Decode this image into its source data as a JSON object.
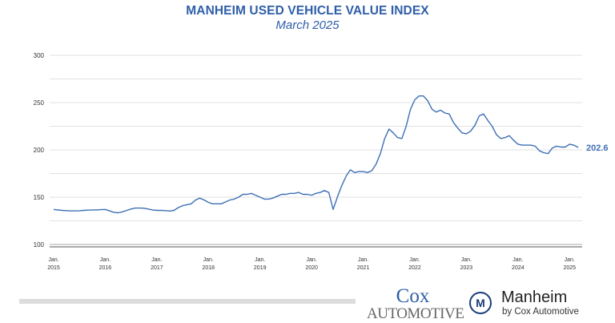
{
  "chart_data": {
    "type": "line",
    "title": "MANHEIM USED VEHICLE VALUE INDEX",
    "subtitle": "March 2025",
    "xlabel": "",
    "ylabel": "",
    "ylim": [
      100,
      300
    ],
    "yticks": [
      "100",
      "150",
      "200",
      "250",
      "300"
    ],
    "ytick_values": [
      100,
      150,
      200,
      250,
      300
    ],
    "grid_values": [
      100,
      125,
      150,
      175,
      200,
      225,
      250,
      275,
      300
    ],
    "x_start": "Jan. 2015",
    "x_end": "Mar. 2025",
    "x_frequency": "monthly",
    "xtick_labels": [
      {
        "line1": "Jan.",
        "line2": "2015",
        "month_index": 0
      },
      {
        "line1": "Jan.",
        "line2": "2016",
        "month_index": 12
      },
      {
        "line1": "Jan.",
        "line2": "2017",
        "month_index": 24
      },
      {
        "line1": "Jan.",
        "line2": "2018",
        "month_index": 36
      },
      {
        "line1": "Jan.",
        "line2": "2019",
        "month_index": 48
      },
      {
        "line1": "Jan.",
        "line2": "2020",
        "month_index": 60
      },
      {
        "line1": "Jan.",
        "line2": "2021",
        "month_index": 72
      },
      {
        "line1": "Jan.",
        "line2": "2022",
        "month_index": 84
      },
      {
        "line1": "Jan.",
        "line2": "2023",
        "month_index": 96
      },
      {
        "line1": "Jan.",
        "line2": "2024",
        "month_index": 108
      },
      {
        "line1": "Jan.",
        "line2": "2025",
        "month_index": 120
      }
    ],
    "series": [
      {
        "name": "Manheim Used Vehicle Value Index",
        "color": "#3e6fb5",
        "values": [
          137,
          136.5,
          136,
          135.8,
          135.5,
          135.5,
          135.7,
          136,
          136.3,
          136.5,
          136.5,
          136.8,
          137,
          135.5,
          134,
          133.5,
          134.5,
          136,
          137.5,
          138.5,
          138.5,
          138.3,
          137.5,
          136.5,
          136,
          136,
          135.8,
          135.3,
          136,
          139,
          141,
          142,
          143,
          147,
          149,
          147,
          144.5,
          143,
          143,
          143,
          145,
          147,
          148,
          150,
          153,
          153,
          154,
          152,
          150,
          148,
          148,
          149,
          151,
          153,
          153,
          154,
          154,
          155,
          153,
          153,
          152,
          154,
          155,
          157,
          155,
          137,
          150,
          162,
          172,
          179,
          176,
          177,
          177,
          176,
          178,
          185,
          196,
          212,
          222,
          218,
          213,
          212,
          225,
          243,
          253,
          257,
          257,
          252,
          243,
          240,
          242,
          239,
          238,
          229,
          223,
          218,
          217,
          220,
          226,
          236,
          238,
          231,
          225,
          216,
          212,
          213,
          215,
          210,
          206,
          205,
          205,
          205,
          204,
          199,
          197,
          196,
          202,
          204,
          203,
          203,
          206,
          205,
          202.6
        ]
      }
    ],
    "end_label": "202.6",
    "legend": "none"
  },
  "footer": {
    "cox_line1": "Cox",
    "cox_line2": "Automotive",
    "manheim_name": "Manheim",
    "manheim_sub": "by Cox Automotive",
    "manheim_logo_letter": "M"
  }
}
